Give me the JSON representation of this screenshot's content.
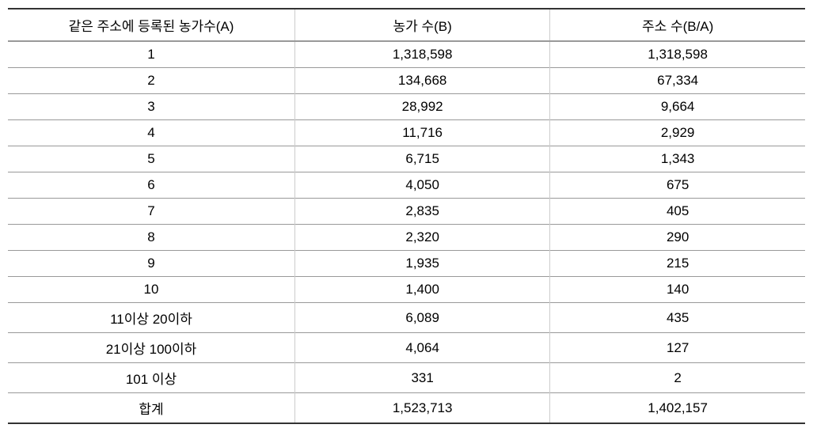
{
  "table": {
    "columns": [
      {
        "label": "같은 주소에 등록된 농가수(A)",
        "class": "col1"
      },
      {
        "label": "농가 수(B)",
        "class": "col2"
      },
      {
        "label": "주소 수(B/A)",
        "class": "col3"
      }
    ],
    "rows": [
      {
        "c0": "1",
        "c1": "1,318,598",
        "c2": "1,318,598"
      },
      {
        "c0": "2",
        "c1": "134,668",
        "c2": "67,334"
      },
      {
        "c0": "3",
        "c1": "28,992",
        "c2": "9,664"
      },
      {
        "c0": "4",
        "c1": "11,716",
        "c2": "2,929"
      },
      {
        "c0": "5",
        "c1": "6,715",
        "c2": "1,343"
      },
      {
        "c0": "6",
        "c1": "4,050",
        "c2": "675"
      },
      {
        "c0": "7",
        "c1": "2,835",
        "c2": "405"
      },
      {
        "c0": "8",
        "c1": "2,320",
        "c2": "290"
      },
      {
        "c0": "9",
        "c1": "1,935",
        "c2": "215"
      },
      {
        "c0": "10",
        "c1": "1,400",
        "c2": "140"
      },
      {
        "c0": "11이상 20이하",
        "c1": "6,089",
        "c2": "435"
      },
      {
        "c0": "21이상 100이하",
        "c1": "4,064",
        "c2": "127"
      },
      {
        "c0": "101 이상",
        "c1": "331",
        "c2": "2"
      },
      {
        "c0": "합계",
        "c1": "1,523,713",
        "c2": "1,402,157"
      }
    ],
    "styling": {
      "header_border_top": "#333333",
      "header_border_bottom": "#999999",
      "row_border": "#999999",
      "last_row_border": "#333333",
      "cell_divider": "#cccccc",
      "font_size": 17,
      "font_family": "Malgun Gothic",
      "text_color": "#000000",
      "background_color": "#ffffff",
      "text_align": "center"
    }
  }
}
